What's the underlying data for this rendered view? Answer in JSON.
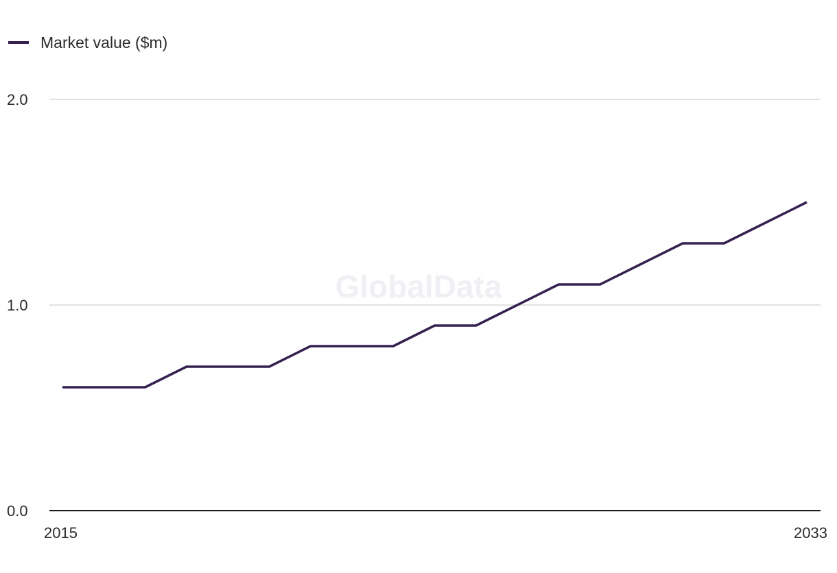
{
  "legend": {
    "label": "Market value ($m)"
  },
  "watermark": "GlobalData",
  "colors": {
    "series": "#35204f",
    "grid": "#d9d9d9",
    "axis": "#1a1a1a"
  },
  "chart_data": {
    "type": "line",
    "x": [
      2015,
      2016,
      2017,
      2018,
      2019,
      2020,
      2021,
      2022,
      2023,
      2024,
      2025,
      2026,
      2027,
      2028,
      2029,
      2030,
      2031,
      2032,
      2033
    ],
    "series": [
      {
        "name": "Market value ($m)",
        "values": [
          0.6,
          0.6,
          0.6,
          0.7,
          0.7,
          0.7,
          0.8,
          0.8,
          0.8,
          0.9,
          0.9,
          1.0,
          1.1,
          1.1,
          1.2,
          1.3,
          1.3,
          1.4,
          1.5
        ]
      }
    ],
    "x_tick_labels": [
      "2015",
      "2033"
    ],
    "y_ticks": [
      0.0,
      1.0,
      2.0
    ],
    "y_tick_labels": [
      "0.0",
      "1.0",
      "2.0"
    ],
    "ylim": [
      0,
      2
    ],
    "xlim": [
      2015,
      2033
    ],
    "grid": true,
    "legend_position": "top-left"
  }
}
